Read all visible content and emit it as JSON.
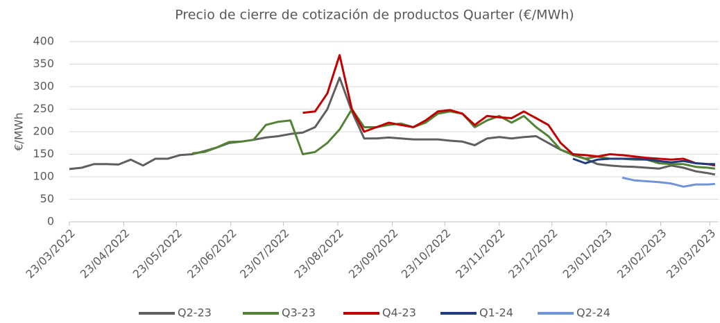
{
  "chart_data": {
    "type": "line",
    "title": "Precio de cierre de cotización de productos Quarter (€/MWh)",
    "y_label": "€/MWh",
    "x": [
      "23/03/2022",
      "30/03/2022",
      "06/04/2022",
      "13/04/2022",
      "20/04/2022",
      "27/04/2022",
      "04/05/2022",
      "11/05/2022",
      "18/05/2022",
      "25/05/2022",
      "01/06/2022",
      "08/06/2022",
      "15/06/2022",
      "22/06/2022",
      "29/06/2022",
      "06/07/2022",
      "13/07/2022",
      "20/07/2022",
      "27/07/2022",
      "03/08/2022",
      "10/08/2022",
      "17/08/2022",
      "24/08/2022",
      "31/08/2022",
      "07/09/2022",
      "14/09/2022",
      "21/09/2022",
      "28/09/2022",
      "05/10/2022",
      "12/10/2022",
      "19/10/2022",
      "26/10/2022",
      "02/11/2022",
      "09/11/2022",
      "16/11/2022",
      "23/11/2022",
      "30/11/2022",
      "07/12/2022",
      "14/12/2022",
      "21/12/2022",
      "28/12/2022",
      "04/01/2023",
      "11/01/2023",
      "18/01/2023",
      "25/01/2023",
      "01/02/2023",
      "08/02/2023",
      "15/02/2023",
      "22/02/2023",
      "01/03/2023",
      "08/03/2023",
      "15/03/2023",
      "22/03/2023",
      "26/03/2023"
    ],
    "series": [
      {
        "name": "Q2-23",
        "color": "#5f5f5f",
        "values": [
          117,
          120,
          128,
          128,
          127,
          138,
          125,
          140,
          140,
          148,
          150,
          157,
          165,
          175,
          178,
          182,
          187,
          190,
          195,
          198,
          210,
          250,
          320,
          245,
          185,
          185,
          187,
          185,
          183,
          183,
          183,
          180,
          178,
          170,
          185,
          188,
          185,
          188,
          190,
          175,
          160,
          150,
          140,
          128,
          125,
          123,
          122,
          120,
          118,
          125,
          120,
          112,
          108,
          105
        ]
      },
      {
        "name": "Q3-23",
        "color": "#548235",
        "values": [
          null,
          null,
          null,
          null,
          null,
          null,
          null,
          null,
          null,
          null,
          152,
          155,
          165,
          177,
          178,
          182,
          215,
          222,
          225,
          150,
          155,
          175,
          205,
          250,
          210,
          210,
          215,
          218,
          210,
          220,
          240,
          245,
          240,
          210,
          225,
          235,
          220,
          235,
          210,
          190,
          160,
          148,
          140,
          145,
          140,
          140,
          138,
          138,
          130,
          128,
          128,
          122,
          120,
          118
        ]
      },
      {
        "name": "Q4-23",
        "color": "#c00000",
        "values": [
          null,
          null,
          null,
          null,
          null,
          null,
          null,
          null,
          null,
          null,
          null,
          null,
          null,
          null,
          null,
          null,
          null,
          null,
          null,
          242,
          245,
          285,
          370,
          250,
          200,
          210,
          220,
          215,
          210,
          225,
          245,
          248,
          240,
          215,
          235,
          232,
          230,
          245,
          230,
          215,
          175,
          150,
          148,
          145,
          150,
          148,
          145,
          142,
          140,
          138,
          140,
          130,
          128,
          125
        ]
      },
      {
        "name": "Q1-24",
        "color": "#1f3d7a",
        "values": [
          null,
          null,
          null,
          null,
          null,
          null,
          null,
          null,
          null,
          null,
          null,
          null,
          null,
          null,
          null,
          null,
          null,
          null,
          null,
          null,
          null,
          null,
          null,
          null,
          null,
          null,
          null,
          null,
          null,
          null,
          null,
          null,
          null,
          null,
          null,
          null,
          null,
          null,
          null,
          null,
          null,
          140,
          130,
          138,
          140,
          140,
          140,
          138,
          135,
          132,
          135,
          130,
          128,
          128
        ]
      },
      {
        "name": "Q2-24",
        "color": "#6f94d8",
        "values": [
          null,
          null,
          null,
          null,
          null,
          null,
          null,
          null,
          null,
          null,
          null,
          null,
          null,
          null,
          null,
          null,
          null,
          null,
          null,
          null,
          null,
          null,
          null,
          null,
          null,
          null,
          null,
          null,
          null,
          null,
          null,
          null,
          null,
          null,
          null,
          null,
          null,
          null,
          null,
          null,
          null,
          null,
          null,
          null,
          null,
          98,
          92,
          90,
          88,
          85,
          78,
          83,
          83,
          84
        ]
      }
    ],
    "xlim": [
      "23/03/2022",
      "28/03/2023"
    ],
    "xticks": [
      "23/03/2022",
      "23/04/2022",
      "23/05/2022",
      "23/06/2022",
      "23/07/2022",
      "23/08/2022",
      "23/09/2022",
      "23/10/2022",
      "23/11/2022",
      "23/12/2022",
      "23/01/2023",
      "23/02/2023",
      "23/03/2023"
    ],
    "ylim": [
      0,
      400
    ],
    "yticks": [
      0,
      50,
      100,
      150,
      200,
      250,
      300,
      350,
      400
    ],
    "grid": true,
    "legend": "bottom"
  }
}
